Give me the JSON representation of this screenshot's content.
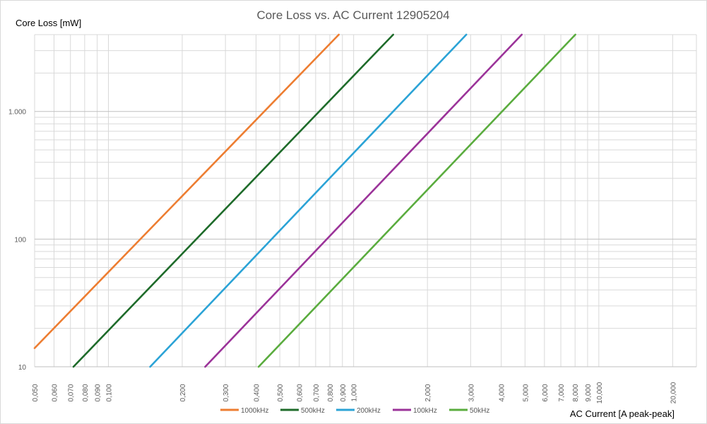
{
  "chart_data": {
    "type": "line",
    "title": "Core Loss vs. AC Current 12905204",
    "xlabel": "AC Current [A peak-peak]",
    "ylabel": "Core Loss [mW]",
    "x_scale": "log",
    "y_scale": "log",
    "xlim": [
      0.05,
      25
    ],
    "ylim": [
      10,
      4000
    ],
    "x_ticks": [
      0.05,
      0.06,
      0.07,
      0.08,
      0.09,
      0.1,
      0.2,
      0.3,
      0.4,
      0.5,
      0.6,
      0.7,
      0.8,
      0.9,
      1,
      2,
      3,
      4,
      5,
      6,
      7,
      8,
      9,
      10,
      20
    ],
    "x_tick_labels": [
      "0,050",
      "0,060",
      "0,070",
      "0,080",
      "0,090",
      "0,100",
      "0,200",
      "0,300",
      "0,400",
      "0,500",
      "0,600",
      "0,700",
      "0,800",
      "0,900",
      "1,000",
      "2,000",
      "3,000",
      "4,000",
      "5,000",
      "6,000",
      "7,000",
      "8,000",
      "9,000",
      "10,000",
      "20,000"
    ],
    "y_ticks": [
      10,
      100,
      1000
    ],
    "y_tick_labels": [
      "10",
      "100",
      "1.000"
    ],
    "grid": true,
    "legend_position": "bottom",
    "series": [
      {
        "name": "1000kHz",
        "color": "#ed7d31",
        "x": [
          0.05,
          0.87
        ],
        "y": [
          14,
          4000
        ]
      },
      {
        "name": "500kHz",
        "color": "#1e6b2a",
        "x": [
          0.072,
          1.45
        ],
        "y": [
          10,
          4000
        ]
      },
      {
        "name": "200kHz",
        "color": "#2ba3d6",
        "x": [
          0.148,
          2.88
        ],
        "y": [
          10,
          4000
        ]
      },
      {
        "name": "100kHz",
        "color": "#9b3399",
        "x": [
          0.248,
          4.85
        ],
        "y": [
          10,
          4000
        ]
      },
      {
        "name": "50kHz",
        "color": "#5aac3e",
        "x": [
          0.41,
          8.02
        ],
        "y": [
          10,
          4000
        ]
      }
    ]
  }
}
